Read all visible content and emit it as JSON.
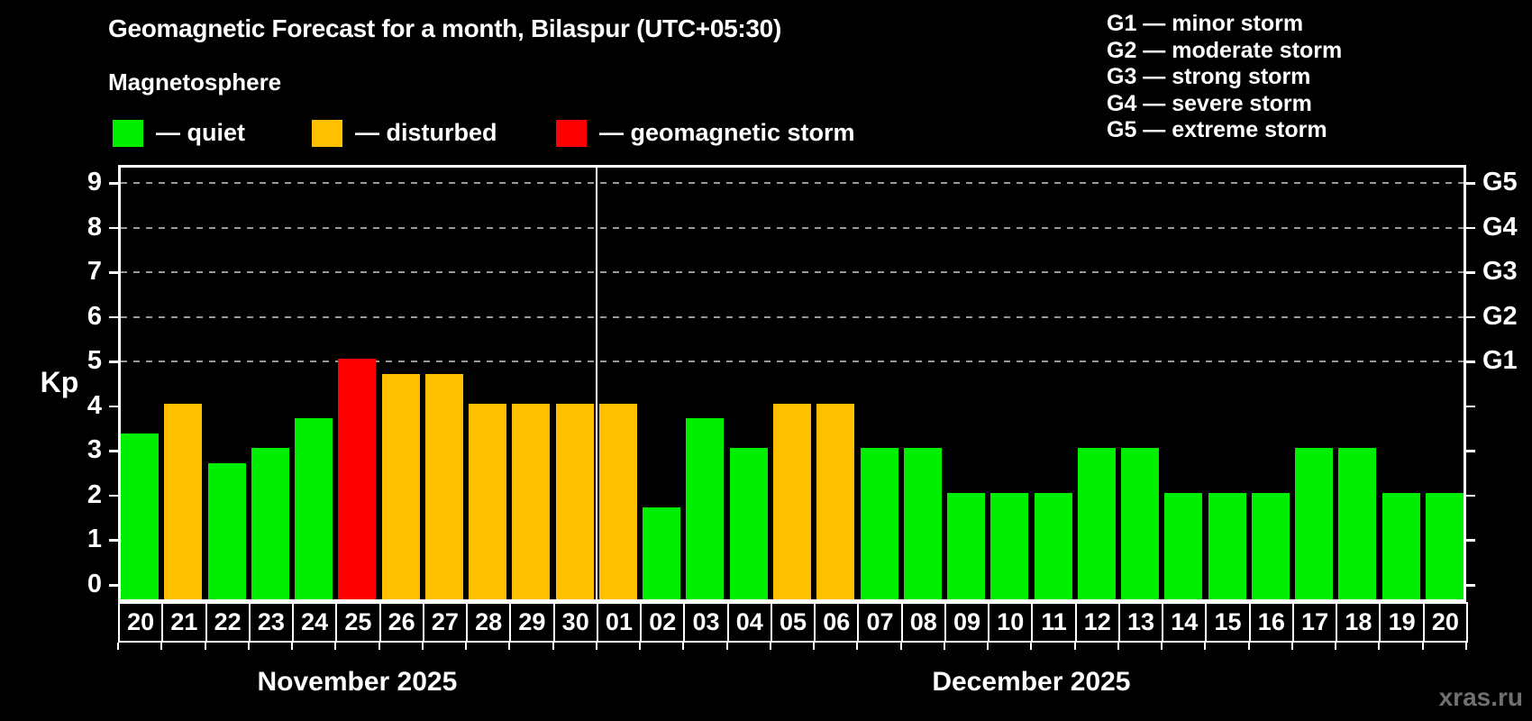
{
  "title": "Geomagnetic Forecast for a month, Bilaspur (UTC+05:30)",
  "subtitle": "Magnetosphere",
  "watermark": "xras.ru",
  "colors": {
    "quiet": "#00ee00",
    "disturbed": "#ffc000",
    "storm": "#ff0000",
    "grid": "#999999",
    "axis": "#ffffff",
    "background": "#000000",
    "watermark": "#707070"
  },
  "legend": {
    "items": [
      {
        "status": "quiet",
        "label": "— quiet"
      },
      {
        "status": "disturbed",
        "label": "— disturbed"
      },
      {
        "status": "storm",
        "label": "— geomagnetic storm"
      }
    ]
  },
  "g_legend": [
    "G1 — minor storm",
    "G2 — moderate storm",
    "G3 — strong storm",
    "G4 — severe storm",
    "G5 — extreme storm"
  ],
  "chart_data": {
    "type": "bar",
    "title": "Geomagnetic Forecast for a month, Bilaspur (UTC+05:30)",
    "xlabel": "",
    "ylabel": "Kp",
    "ylim": [
      0,
      9
    ],
    "grid": true,
    "y_ticks": [
      0,
      1,
      2,
      3,
      4,
      5,
      6,
      7,
      8,
      9
    ],
    "grid_levels_kp": [
      5,
      6,
      7,
      8,
      9
    ],
    "right_axis_labels": [
      {
        "label": "G1",
        "kp": 5
      },
      {
        "label": "G2",
        "kp": 6
      },
      {
        "label": "G3",
        "kp": 7
      },
      {
        "label": "G4",
        "kp": 8
      },
      {
        "label": "G5",
        "kp": 9
      }
    ],
    "months": [
      {
        "label": "November 2025",
        "days": 11
      },
      {
        "label": "December 2025",
        "days": 20
      }
    ],
    "bars": [
      {
        "date": "20",
        "month": "November 2025",
        "kp": 3.33,
        "status": "quiet"
      },
      {
        "date": "21",
        "month": "November 2025",
        "kp": 4.0,
        "status": "disturbed"
      },
      {
        "date": "22",
        "month": "November 2025",
        "kp": 2.67,
        "status": "quiet"
      },
      {
        "date": "23",
        "month": "November 2025",
        "kp": 3.0,
        "status": "quiet"
      },
      {
        "date": "24",
        "month": "November 2025",
        "kp": 3.67,
        "status": "quiet"
      },
      {
        "date": "25",
        "month": "November 2025",
        "kp": 5.0,
        "status": "storm"
      },
      {
        "date": "26",
        "month": "November 2025",
        "kp": 4.67,
        "status": "disturbed"
      },
      {
        "date": "27",
        "month": "November 2025",
        "kp": 4.67,
        "status": "disturbed"
      },
      {
        "date": "28",
        "month": "November 2025",
        "kp": 4.0,
        "status": "disturbed"
      },
      {
        "date": "29",
        "month": "November 2025",
        "kp": 4.0,
        "status": "disturbed"
      },
      {
        "date": "30",
        "month": "November 2025",
        "kp": 4.0,
        "status": "disturbed"
      },
      {
        "date": "01",
        "month": "December 2025",
        "kp": 4.0,
        "status": "disturbed"
      },
      {
        "date": "02",
        "month": "December 2025",
        "kp": 1.67,
        "status": "quiet"
      },
      {
        "date": "03",
        "month": "December 2025",
        "kp": 3.67,
        "status": "quiet"
      },
      {
        "date": "04",
        "month": "December 2025",
        "kp": 3.0,
        "status": "quiet"
      },
      {
        "date": "05",
        "month": "December 2025",
        "kp": 4.0,
        "status": "disturbed"
      },
      {
        "date": "06",
        "month": "December 2025",
        "kp": 4.0,
        "status": "disturbed"
      },
      {
        "date": "07",
        "month": "December 2025",
        "kp": 3.0,
        "status": "quiet"
      },
      {
        "date": "08",
        "month": "December 2025",
        "kp": 3.0,
        "status": "quiet"
      },
      {
        "date": "09",
        "month": "December 2025",
        "kp": 2.0,
        "status": "quiet"
      },
      {
        "date": "10",
        "month": "December 2025",
        "kp": 2.0,
        "status": "quiet"
      },
      {
        "date": "11",
        "month": "December 2025",
        "kp": 2.0,
        "status": "quiet"
      },
      {
        "date": "12",
        "month": "December 2025",
        "kp": 3.0,
        "status": "quiet"
      },
      {
        "date": "13",
        "month": "December 2025",
        "kp": 3.0,
        "status": "quiet"
      },
      {
        "date": "14",
        "month": "December 2025",
        "kp": 2.0,
        "status": "quiet"
      },
      {
        "date": "15",
        "month": "December 2025",
        "kp": 2.0,
        "status": "quiet"
      },
      {
        "date": "16",
        "month": "December 2025",
        "kp": 2.0,
        "status": "quiet"
      },
      {
        "date": "17",
        "month": "December 2025",
        "kp": 3.0,
        "status": "quiet"
      },
      {
        "date": "18",
        "month": "December 2025",
        "kp": 3.0,
        "status": "quiet"
      },
      {
        "date": "19",
        "month": "December 2025",
        "kp": 2.0,
        "status": "quiet"
      },
      {
        "date": "20",
        "month": "December 2025",
        "kp": 2.0,
        "status": "quiet"
      }
    ]
  }
}
